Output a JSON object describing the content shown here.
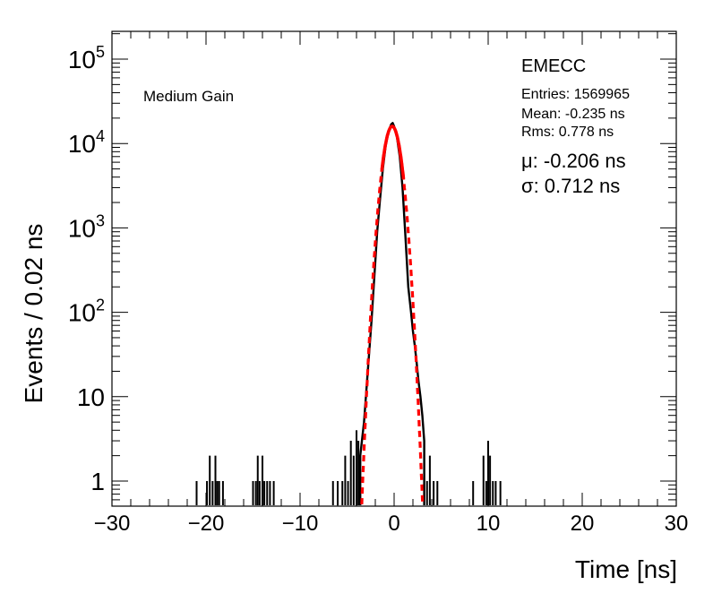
{
  "chart_data": {
    "type": "histogram",
    "ylabel": "Events / 0.02 ns",
    "xlabel": "Time [ns]",
    "xlim": [
      -30,
      30
    ],
    "ylim": [
      0.5,
      250000
    ],
    "ylog": true,
    "x_ticks": [
      "−30",
      "−20",
      "−10",
      "0",
      "10",
      "20",
      "30"
    ],
    "y_ticks": [
      {
        "base": "1",
        "exp": ""
      },
      {
        "base": "10",
        "exp": ""
      },
      {
        "base": "10",
        "exp": "2"
      },
      {
        "base": "10",
        "exp": "3"
      },
      {
        "base": "10",
        "exp": "4"
      },
      {
        "base": "10",
        "exp": "5"
      }
    ],
    "annotations": {
      "gain": "Medium Gain",
      "region": "EMECC",
      "entries": "Entries: 1569965",
      "mean": "Mean: -0.235 ns",
      "rms": "Rms: 0.778 ns",
      "mu": "μ: -0.206 ns",
      "sigma": "σ: 0.712 ns"
    },
    "stats": {
      "entries": 1569965,
      "mean": -0.235,
      "rms": 0.778
    },
    "fit": {
      "mu": -0.206,
      "sigma": 0.712,
      "amplitude": 16000,
      "color": "#ff0000",
      "style": "dashed",
      "solid_range": [
        -1.3,
        1.0
      ]
    },
    "histogram": {
      "color": "#000000",
      "core": [
        [
          -3.6,
          2
        ],
        [
          -3.2,
          5
        ],
        [
          -3.0,
          10
        ],
        [
          -2.8,
          20
        ],
        [
          -2.6,
          40
        ],
        [
          -2.4,
          80
        ],
        [
          -2.2,
          180
        ],
        [
          -2.0,
          400
        ],
        [
          -1.8,
          900
        ],
        [
          -1.5,
          2200
        ],
        [
          -1.2,
          5000
        ],
        [
          -0.9,
          9500
        ],
        [
          -0.6,
          14000
        ],
        [
          -0.3,
          17000
        ],
        [
          -0.15,
          17500
        ],
        [
          0.0,
          16000
        ],
        [
          0.3,
          12000
        ],
        [
          0.6,
          7000
        ],
        [
          0.9,
          3000
        ],
        [
          1.2,
          800
        ],
        [
          1.5,
          200
        ],
        [
          1.8,
          100
        ],
        [
          2.0,
          60
        ],
        [
          2.2,
          40
        ],
        [
          2.4,
          25
        ],
        [
          2.6,
          15
        ],
        [
          2.8,
          10
        ],
        [
          3.0,
          6
        ],
        [
          3.2,
          3
        ]
      ],
      "spikes": [
        [
          -21,
          1
        ],
        [
          -19.9,
          1
        ],
        [
          -19.6,
          2
        ],
        [
          -19.3,
          1
        ],
        [
          -19.0,
          2
        ],
        [
          -18.8,
          1
        ],
        [
          -18.6,
          1
        ],
        [
          -18.2,
          1
        ],
        [
          -15,
          1
        ],
        [
          -14.7,
          1
        ],
        [
          -14.5,
          2
        ],
        [
          -14.3,
          1
        ],
        [
          -14.0,
          2
        ],
        [
          -13.8,
          1
        ],
        [
          -13.5,
          1
        ],
        [
          -13.2,
          1
        ],
        [
          -12.8,
          1
        ],
        [
          -6.5,
          1
        ],
        [
          -6.0,
          1
        ],
        [
          -5.5,
          1
        ],
        [
          -5.2,
          2
        ],
        [
          -4.9,
          1
        ],
        [
          -4.6,
          3
        ],
        [
          -4.3,
          2
        ],
        [
          -4.0,
          4
        ],
        [
          -3.8,
          3
        ],
        [
          3.5,
          1
        ],
        [
          3.8,
          2
        ],
        [
          4.2,
          1
        ],
        [
          4.6,
          1
        ],
        [
          8.4,
          1
        ],
        [
          9.5,
          2
        ],
        [
          9.8,
          1
        ],
        [
          10.0,
          3
        ],
        [
          10.2,
          2
        ],
        [
          10.5,
          1
        ],
        [
          10.8,
          1
        ],
        [
          11.3,
          1
        ]
      ]
    }
  }
}
